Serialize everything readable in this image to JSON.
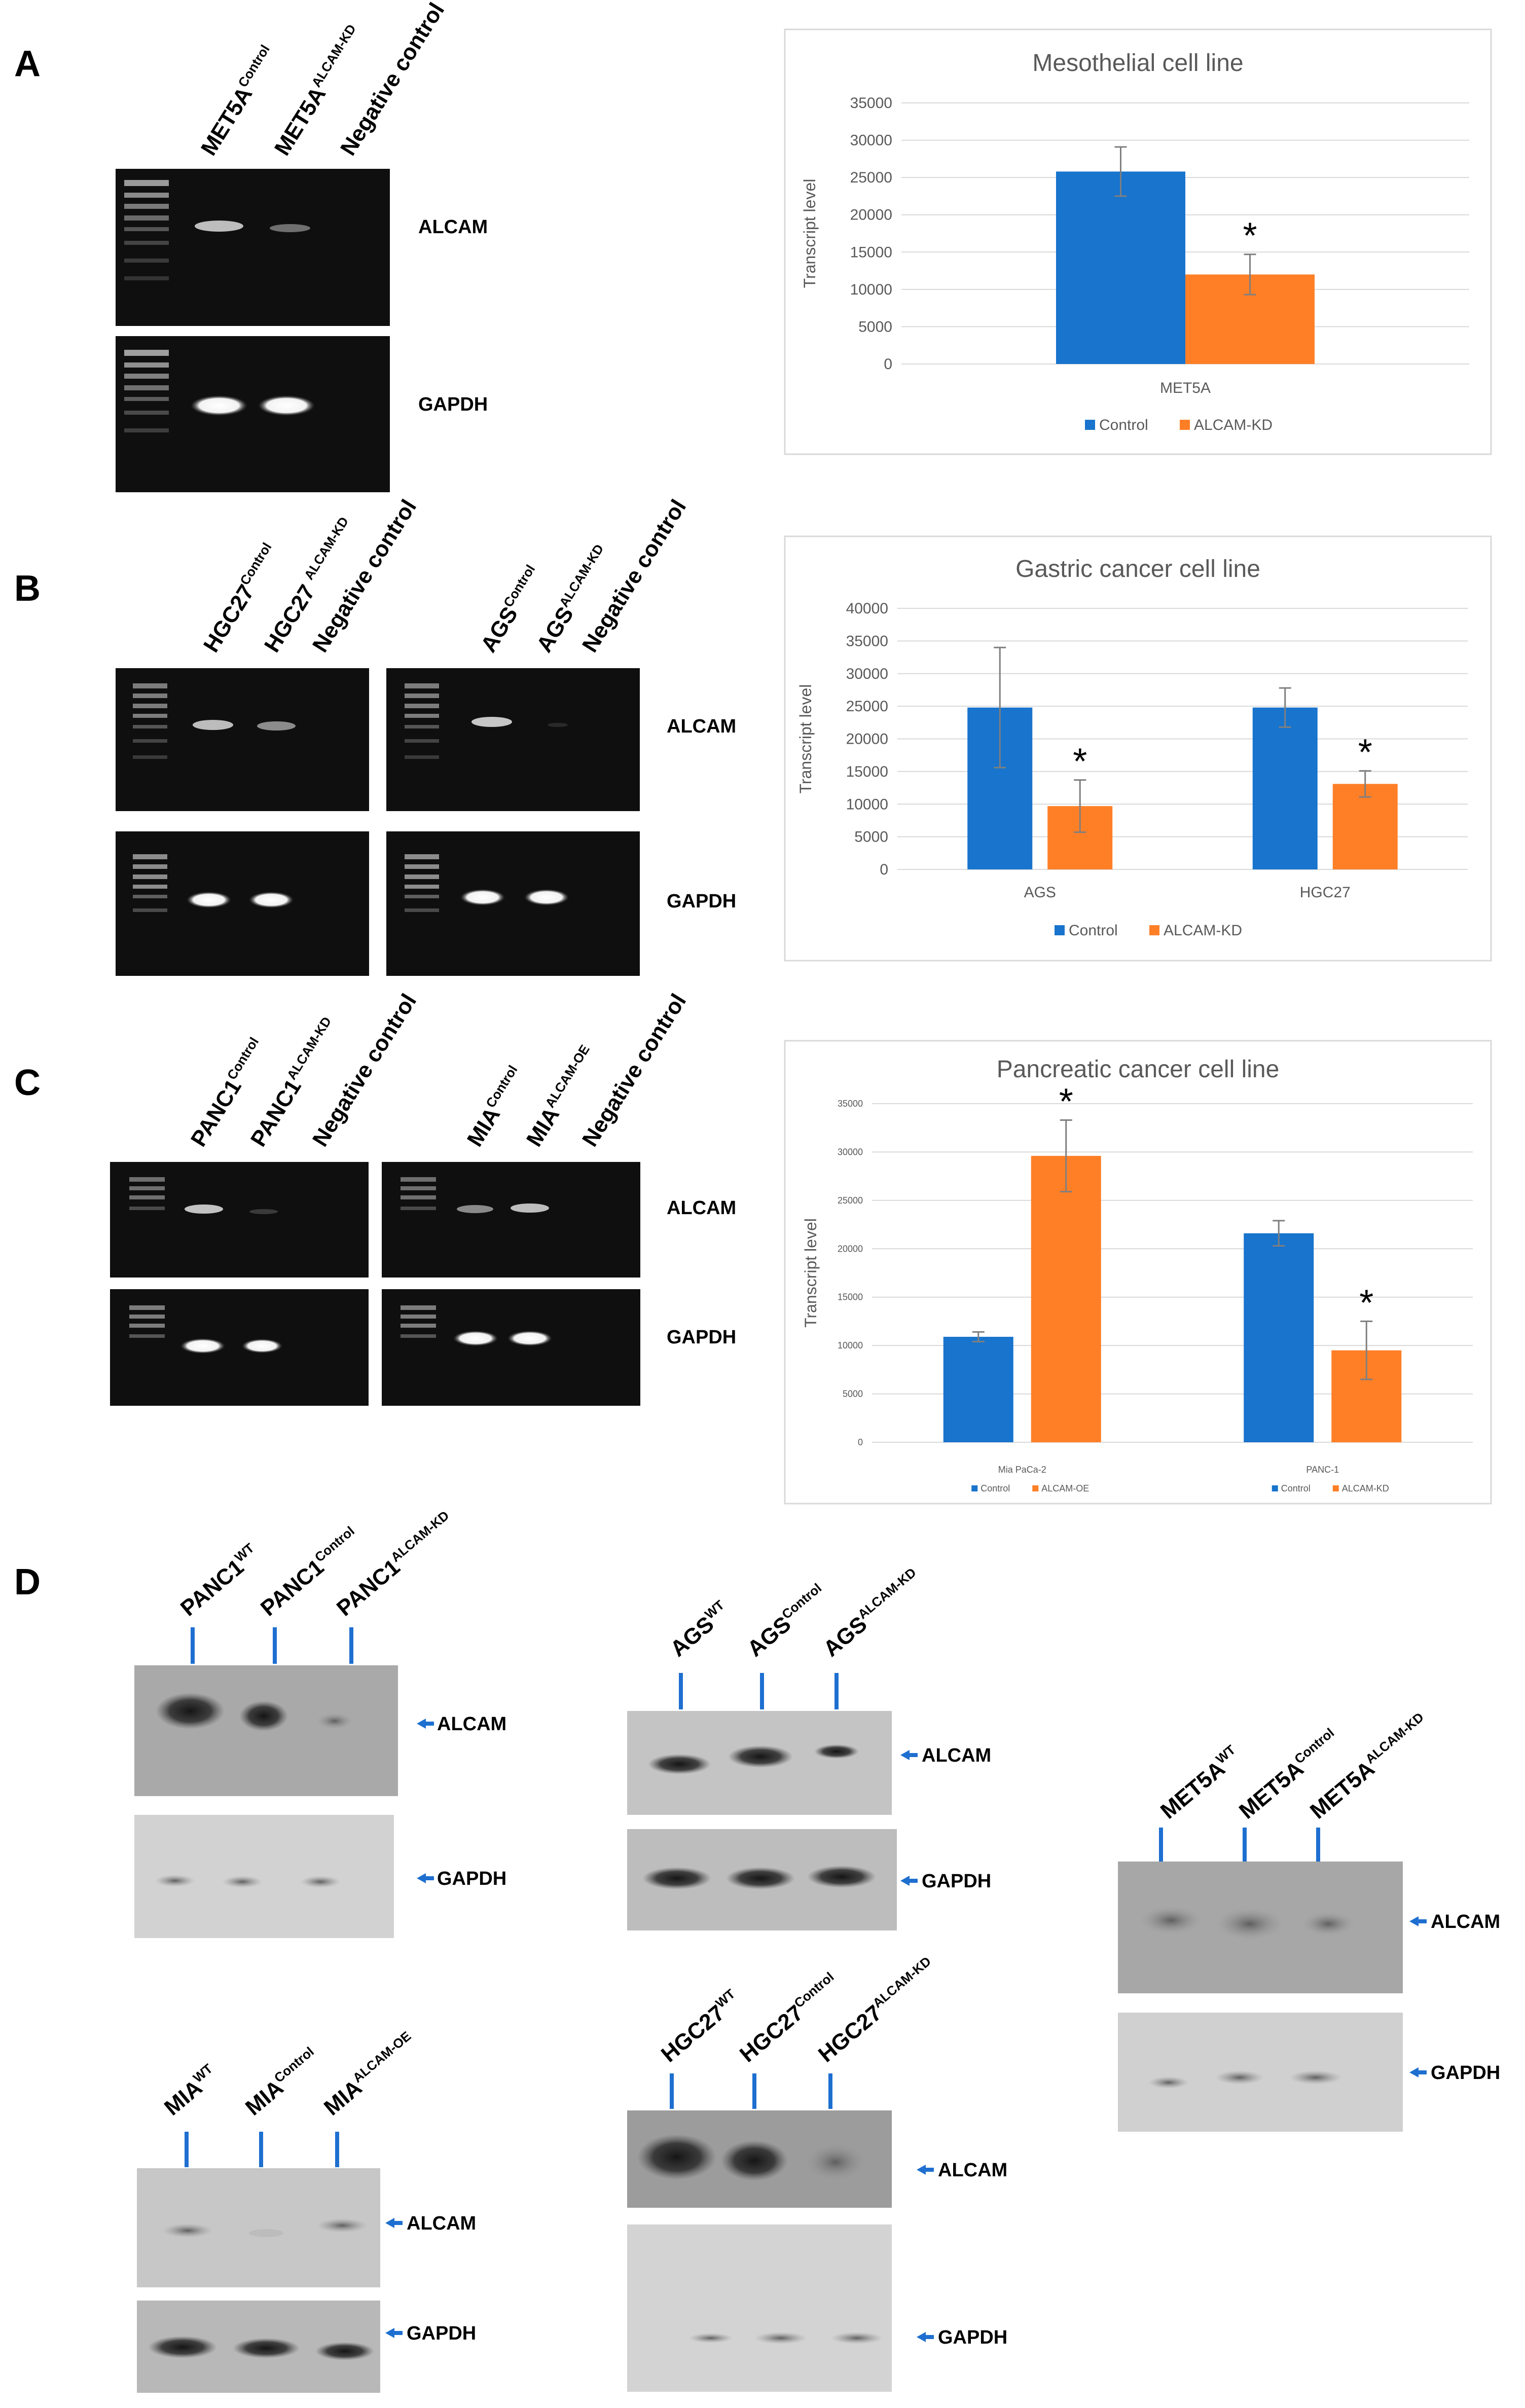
{
  "panels": {
    "A": "A",
    "B": "B",
    "C": "C",
    "D": "D"
  },
  "gels": {
    "A": {
      "lanes": [
        {
          "main": "MET5A",
          "sup": "Control"
        },
        {
          "main": "MET5A",
          "sup": "ALCAM-KD"
        },
        {
          "main": "Negative control",
          "sup": ""
        }
      ],
      "band_labels": [
        "ALCAM",
        "GAPDH"
      ]
    },
    "B_left": {
      "lanes": [
        {
          "main": "HGC27",
          "sup": "Control"
        },
        {
          "main": "HGC27 ",
          "sup": "ALCAM-KD"
        },
        {
          "main": "Negative control",
          "sup": ""
        }
      ]
    },
    "B_right": {
      "lanes": [
        {
          "main": "AGS",
          "sup": "Control"
        },
        {
          "main": "AGS",
          "sup": "ALCAM-KD"
        },
        {
          "main": "Negative control",
          "sup": ""
        }
      ],
      "band_labels": [
        "ALCAM",
        "GAPDH"
      ]
    },
    "C_left": {
      "lanes": [
        {
          "main": "PANC1",
          "sup": "Control"
        },
        {
          "main": "PANC1",
          "sup": "ALCAM-KD"
        },
        {
          "main": "Negative control",
          "sup": ""
        }
      ]
    },
    "C_right": {
      "lanes": [
        {
          "main": "MIA",
          "sup": "Control"
        },
        {
          "main": "MIA",
          "sup": "ALCAM-OE"
        },
        {
          "main": "Negative control",
          "sup": ""
        }
      ],
      "band_labels": [
        "ALCAM",
        "GAPDH"
      ]
    }
  },
  "blots": {
    "panc1": {
      "lanes": [
        {
          "main": "PANC1",
          "sup": "WT"
        },
        {
          "main": "PANC1",
          "sup": "Control"
        },
        {
          "main": "PANC1",
          "sup": "ALCAM-KD"
        }
      ],
      "band_labels": [
        "ALCAM",
        "GAPDH"
      ]
    },
    "ags": {
      "lanes": [
        {
          "main": "AGS",
          "sup": "WT"
        },
        {
          "main": "AGS",
          "sup": "Control"
        },
        {
          "main": "AGS",
          "sup": "ALCAM-KD"
        }
      ],
      "band_labels": [
        "ALCAM",
        "GAPDH"
      ]
    },
    "met5a": {
      "lanes": [
        {
          "main": "MET5A",
          "sup": "WT"
        },
        {
          "main": "MET5A",
          "sup": "Control"
        },
        {
          "main": "MET5A",
          "sup": "ALCAM-KD"
        }
      ],
      "band_labels": [
        "ALCAM",
        "GAPDH"
      ]
    },
    "mia": {
      "lanes": [
        {
          "main": "MIA",
          "sup": "WT"
        },
        {
          "main": "MIA",
          "sup": "Control"
        },
        {
          "main": "MIA",
          "sup": "ALCAM-OE"
        }
      ],
      "band_labels": [
        "ALCAM",
        "GAPDH"
      ]
    },
    "hgc27": {
      "lanes": [
        {
          "main": "HGC27",
          "sup": "WT"
        },
        {
          "main": "HGC27",
          "sup": "Control"
        },
        {
          "main": "HGC27",
          "sup": "ALCAM-KD"
        }
      ],
      "band_labels": [
        "ALCAM",
        "GAPDH"
      ]
    }
  },
  "chart_data": [
    {
      "type": "bar",
      "title": "Mesothelial cell line",
      "ylabel": "Transcript level",
      "xlabel": "",
      "categories": [
        "MET5A"
      ],
      "series": [
        {
          "name": "Control",
          "color": "#1874cd",
          "values": [
            25800
          ],
          "errors": [
            3300
          ],
          "significant": [
            false
          ]
        },
        {
          "name": "ALCAM-KD",
          "color": "#ff7f27",
          "values": [
            12000
          ],
          "errors": [
            2700
          ],
          "significant": [
            true
          ]
        }
      ],
      "ylim": [
        0,
        35000
      ],
      "yticks": [
        0,
        5000,
        10000,
        15000,
        20000,
        25000,
        30000,
        35000
      ],
      "grid": true,
      "legend": "bottom"
    },
    {
      "type": "bar",
      "title": "Gastric cancer cell line",
      "ylabel": "Transcript level",
      "xlabel": "",
      "categories": [
        "AGS",
        "HGC27"
      ],
      "series": [
        {
          "name": "Control",
          "color": "#1874cd",
          "values": [
            24800,
            24800
          ],
          "errors": [
            9200,
            3000
          ],
          "significant": [
            false,
            false
          ]
        },
        {
          "name": "ALCAM-KD",
          "color": "#ff7f27",
          "values": [
            9700,
            13100
          ],
          "errors": [
            4000,
            2000
          ],
          "significant": [
            true,
            true
          ]
        }
      ],
      "ylim": [
        0,
        40000
      ],
      "yticks": [
        0,
        5000,
        10000,
        15000,
        20000,
        25000,
        30000,
        35000,
        40000
      ],
      "grid": true,
      "legend": "bottom"
    },
    {
      "type": "bar",
      "title": "Pancreatic cancer cell line",
      "ylabel": "Transcript level",
      "xlabel": "",
      "categories": [
        "Mia PaCa-2",
        "PANC-1"
      ],
      "series": [
        {
          "name": "Control",
          "color": "#1874cd",
          "values": [
            10900,
            21600
          ],
          "errors": [
            500,
            1300
          ],
          "significant": [
            false,
            false
          ]
        },
        {
          "name": "ALCAM-OE / ALCAM-KD",
          "color": "#ff7f27",
          "values": [
            29600,
            9500
          ],
          "errors": [
            3700,
            3000
          ],
          "significant": [
            true,
            true
          ]
        }
      ],
      "group_legends": [
        [
          "Control",
          "ALCAM-OE"
        ],
        [
          "Control",
          "ALCAM-KD"
        ]
      ],
      "ylim": [
        0,
        35000
      ],
      "yticks": [
        0,
        5000,
        10000,
        15000,
        20000,
        25000,
        30000,
        35000
      ],
      "grid": true,
      "legend": "bottom"
    }
  ]
}
